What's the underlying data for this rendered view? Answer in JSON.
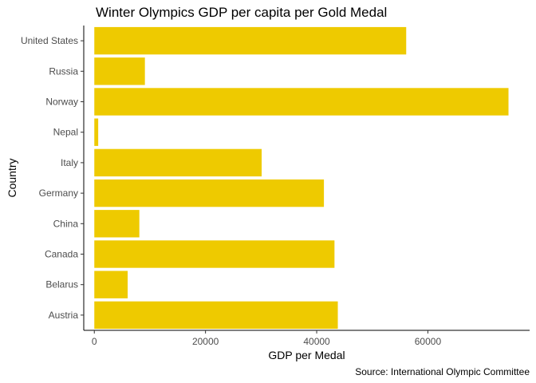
{
  "chart_data": {
    "type": "bar",
    "orientation": "horizontal",
    "title": "Winter Olympics GDP per capita per Gold Medal",
    "xlabel": "GDP per Medal",
    "ylabel": "Country",
    "caption": "Source: International Olympic Committee",
    "categories": [
      "Austria",
      "Belarus",
      "Canada",
      "China",
      "Germany",
      "Italy",
      "Nepal",
      "Norway",
      "Russia",
      "United States"
    ],
    "values": [
      43800,
      6000,
      43200,
      8100,
      41300,
      30100,
      700,
      74500,
      9100,
      56100
    ],
    "xlim": [
      -1900,
      78300
    ],
    "xticks": [
      0,
      20000,
      40000,
      60000
    ],
    "xtick_labels": [
      "0",
      "20000",
      "40000",
      "60000"
    ],
    "bar_color": "#EECA00",
    "grid": false,
    "legend": "none"
  }
}
